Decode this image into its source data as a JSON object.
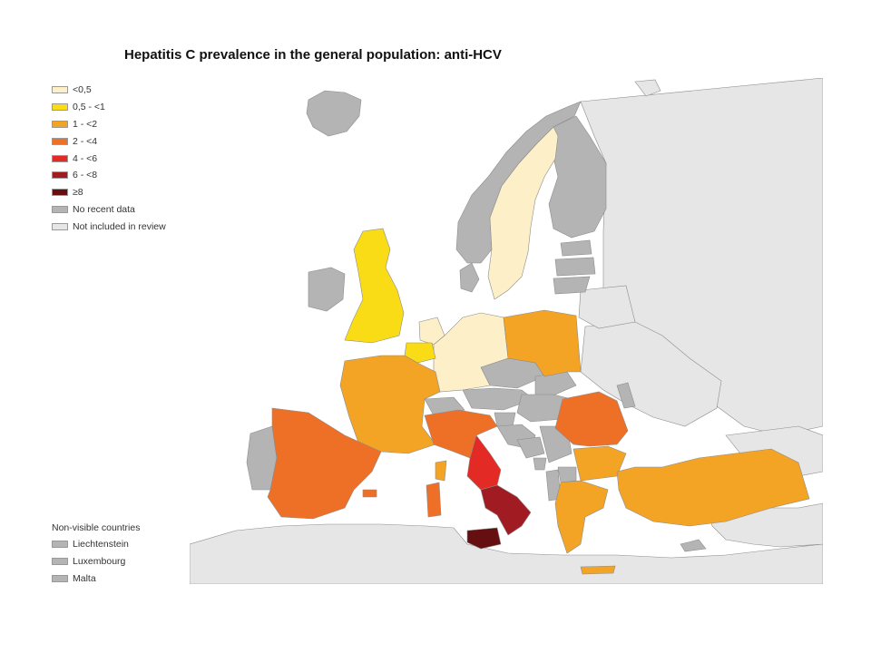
{
  "title": "Hepatitis C prevalence in the general population: anti-HCV",
  "legend": [
    {
      "label": "<0,5",
      "color": "#fdf0c8"
    },
    {
      "label": "0,5 - <1",
      "color": "#f9dc16"
    },
    {
      "label": "1 - <2",
      "color": "#f3a425"
    },
    {
      "label": "2 - <4",
      "color": "#ee7027"
    },
    {
      "label": "4 - <6",
      "color": "#e42a24"
    },
    {
      "label": "6 - <8",
      "color": "#a11c22"
    },
    {
      "label": "≥8",
      "color": "#660f10"
    },
    {
      "label": "No recent data",
      "color": "#b4b4b4"
    },
    {
      "label": "Not included in review",
      "color": "#e6e6e6"
    }
  ],
  "non_visible": {
    "title": "Non-visible countries",
    "items": [
      {
        "label": "Liechtenstein",
        "color": "#b4b4b4"
      },
      {
        "label": "Luxembourg",
        "color": "#b4b4b4"
      },
      {
        "label": "Malta",
        "color": "#b4b4b4"
      }
    ]
  },
  "colors": {
    "sea": "#ffffff",
    "not_included": "#e6e6e6",
    "border": "#8c8c8c"
  }
}
